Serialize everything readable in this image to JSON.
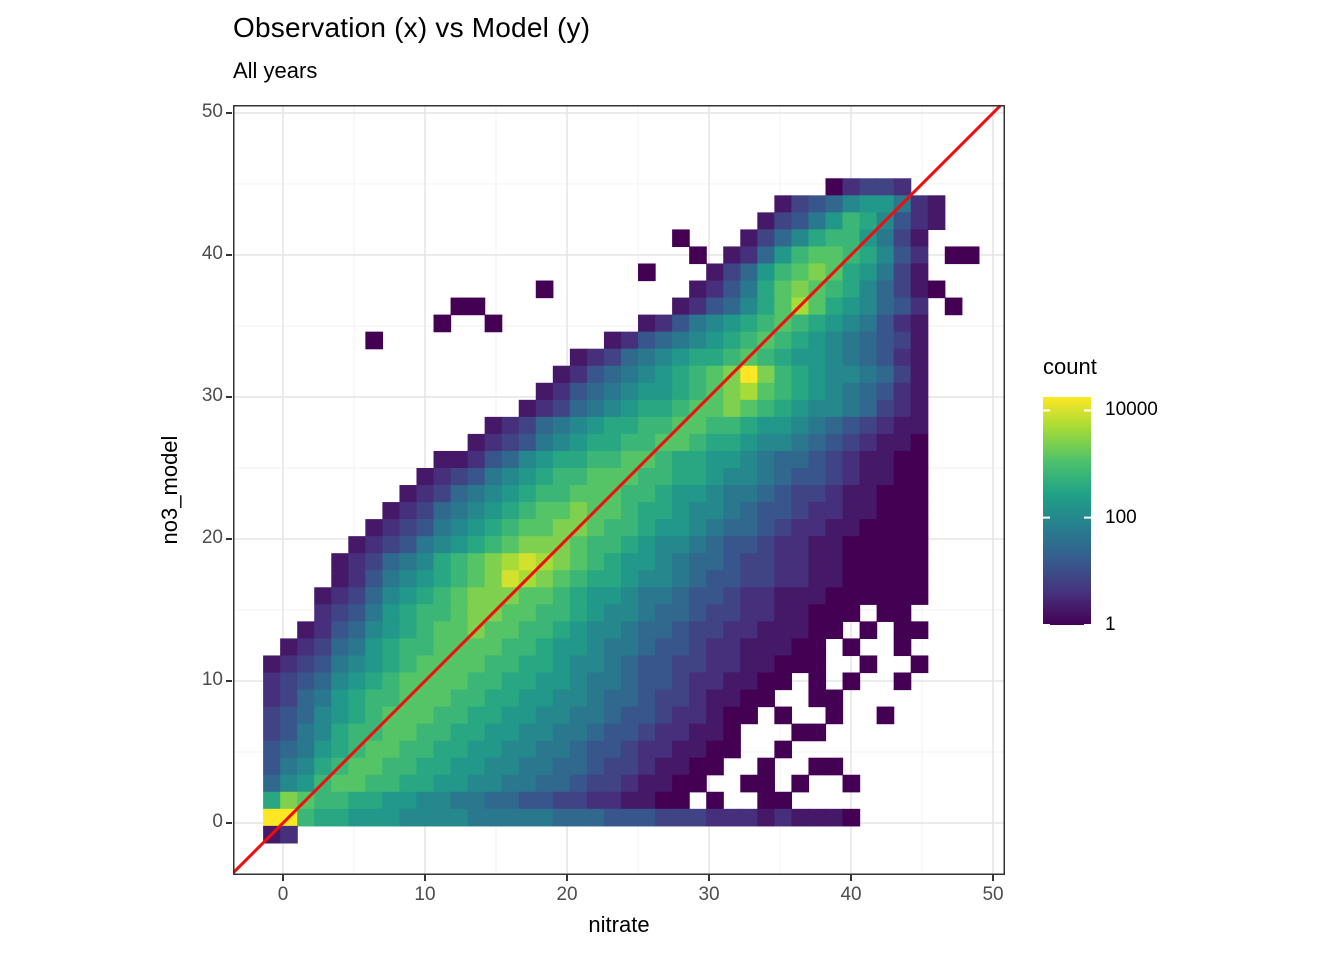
{
  "title": "Observation (x) vs Model (y)",
  "subtitle": "All years",
  "axes": {
    "x": {
      "label": "nitrate",
      "ticks": [
        0,
        10,
        20,
        30,
        40,
        50
      ],
      "minor_ticks": [
        5,
        15,
        25,
        35,
        45
      ],
      "range": [
        -3.52,
        50.84
      ]
    },
    "y": {
      "label": "no3_model",
      "ticks": [
        0,
        10,
        20,
        30,
        40,
        50
      ],
      "minor_ticks": [
        5,
        15,
        25,
        35,
        45
      ],
      "range": [
        -3.66,
        50.56
      ]
    }
  },
  "legend": {
    "title": "count",
    "ticks": [
      {
        "label": "10000",
        "count": 10000,
        "pos": 0.941
      },
      {
        "label": "100",
        "count": 100,
        "pos": 0.471
      },
      {
        "label": "1",
        "count": 1,
        "pos": 0.0
      }
    ]
  },
  "style": {
    "panel_border": "#333333",
    "grid_major": "#e6e6e6",
    "grid_minor": "#f4f4f4",
    "tick_color": "#333333",
    "tick_label_color": "#4d4d4d",
    "abline_color": "#f20d0d"
  },
  "chart_data": {
    "type": "heatmap",
    "title": "Observation (x) vs Model (y)",
    "subtitle": "All years",
    "xlabel": "nitrate",
    "ylabel": "no3_model",
    "xlim": [
      -3.52,
      50.84
    ],
    "ylim": [
      -3.66,
      50.56
    ],
    "legend_title": "count",
    "count_scale": "log10, chars 0-f encode v where count = 10^(4.25*v/15); '.' = empty bin",
    "bin_width": 1.2,
    "x_first_bin_left": -1.4,
    "y_first_bin_bottom": -1.4,
    "colormap": {
      "name": "viridis",
      "anchors": [
        "#440154",
        "#46327e",
        "#365c8d",
        "#277f8e",
        "#1fa187",
        "#4ac16d",
        "#a0da39",
        "#fde725"
      ]
    },
    "overlay_line": {
      "type": "abline",
      "slope": 1,
      "intercept": 0,
      "color": "#f20d0d",
      "width": 3
    },
    "rows_top_to_bottom": [
      ".................................02332....",
      "..............................1345788621..",
      ".............................13468a97421..",
      "........................0...13579aa8631...",
      ".........................0.1258abba9742.00",
      "......................0...1358abcb98631...",
      "................0........12469bcba975310..",
      "...........00...........124579bdb987542.0.",
      "..........0..0........1246789aba9876421...",
      "......0.............12456789aba98765431...",
      "..................123567899aba988765421...",
      ".................12456789abcfca98776531...",
      "................124567889abcdba98765421...",
      "...............123567899abbcba987765321...",
      ".............123567899aabbaa98876543211...",
      "............123467899aabba9987765432110...",
      "..........112457899aabba998876554321100...",
      ".........12346789aabbbaa998776544321100...",
      "........12356789aabbbaa9887665433211000...",
      ".......12356789abbcbba99877654432211000...",
      "......12346789abbccbaa98876554322110000...",
      ".....12346789abcccbaa987765443221100000...",
      "....1235679abcdedcba9887655433221100000...",
      "....1246789abcedcba99877654433221100000...",
      "...1235789abcccbba988766544322111000000...",
      "...234689aabccbbaa98776554332211000.00....",
      "..1245789abbcbbaa98776554332211100.0.00...",
      ".1235689aabbbbaa98876654432211100.0..0....",
      "12346789abbbbaa998776544332211000..0..0...",
      "2345789abbbbaa99887665443221100.0.0..0....",
      "235689aabbbaa99887765543321100..00........",
      "345789abbbaa99887766544322100.0..0..0.....",
      "34679aabbaa99887766544322110...00.........",
      "45689abbaa998877665443221100..0...........",
      "4679abbaa998877665543321100..0..00........",
      "578abbaa998877665543321100..00.0..0.......",
      "9cbaa99887766554433221100.0..00...........",
      "ffa99888777766666555444333222121110.......",
      "12........................................"
    ]
  }
}
